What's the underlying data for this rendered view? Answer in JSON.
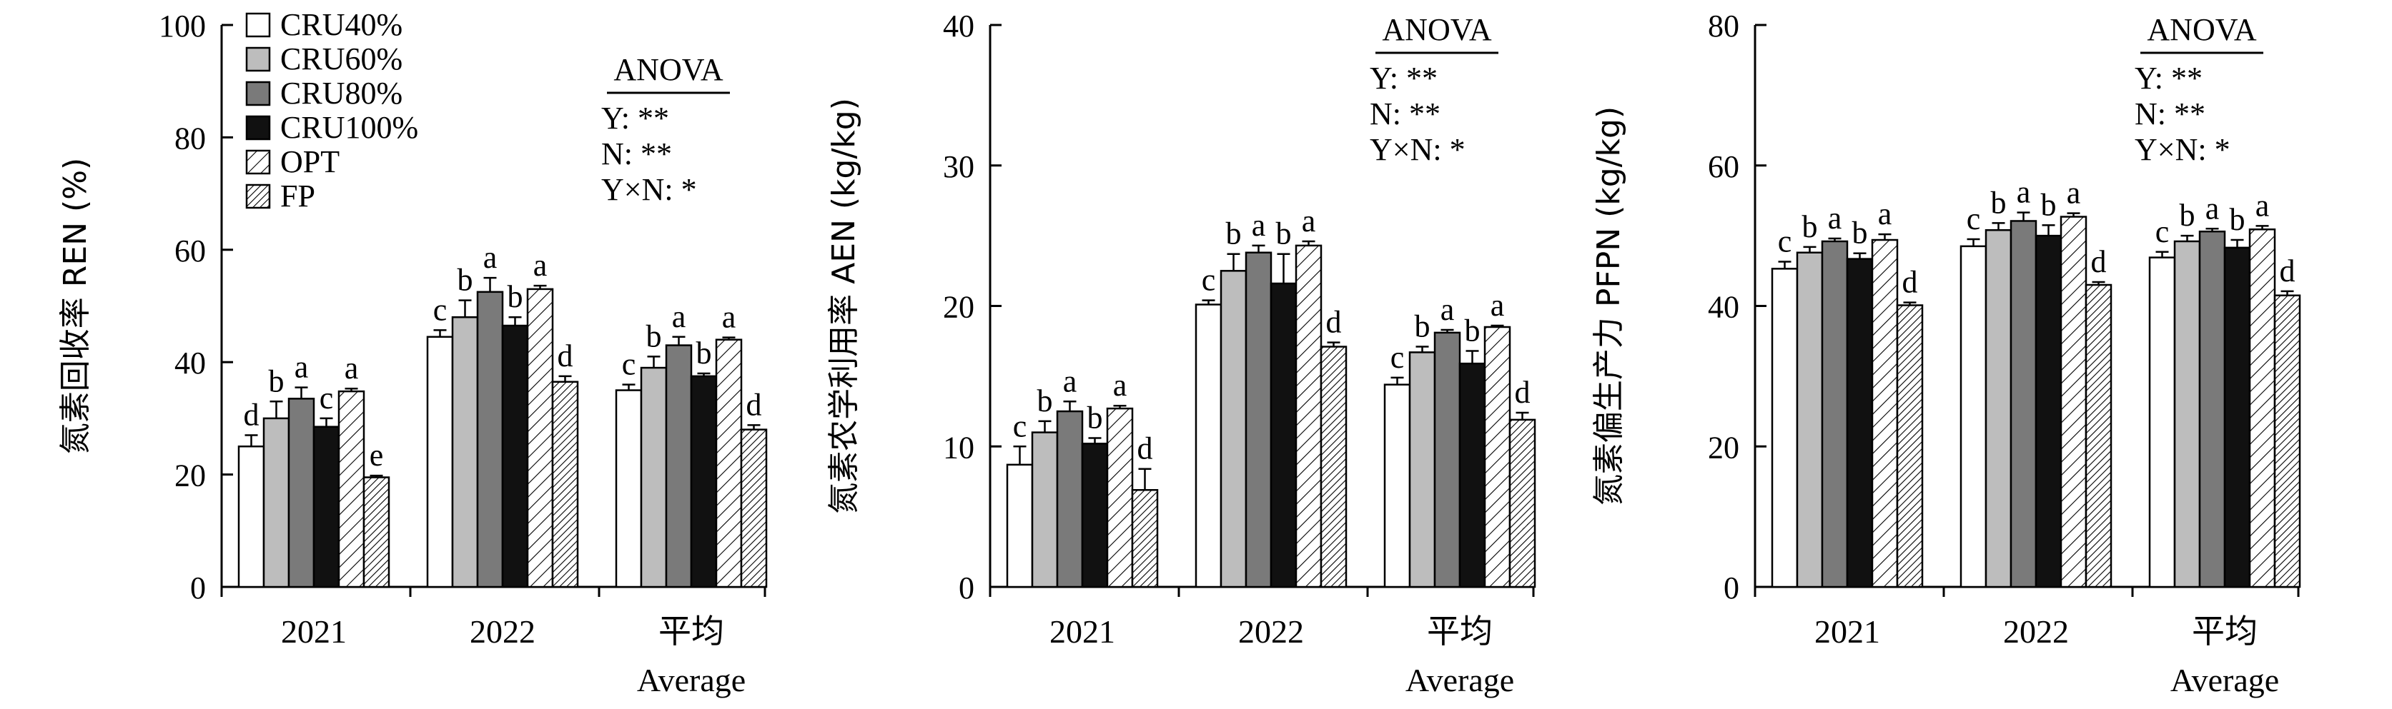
{
  "chart_data": [
    {
      "type": "bar",
      "ylabel": "氮素回收率 REN (%)",
      "ylim": [
        0,
        100
      ],
      "yticks": [
        0,
        20,
        40,
        60,
        80,
        100
      ],
      "categories": [
        "2021",
        "2022",
        "平均"
      ],
      "category_sublabels": [
        "",
        "",
        "Average"
      ],
      "anova": [
        "ANOVA",
        "Y: **",
        "N: **",
        "Y×N: *"
      ],
      "anova_position": "top-right",
      "legend_position": "top-left",
      "series": [
        {
          "name": "CRU40%",
          "fill": "white",
          "values": [
            25,
            44.5,
            35
          ],
          "errors": [
            2,
            1.2,
            1
          ],
          "letters": [
            "d",
            "c",
            "c"
          ]
        },
        {
          "name": "CRU60%",
          "fill": "light-gray",
          "values": [
            30,
            48,
            39
          ],
          "errors": [
            3,
            3,
            2
          ],
          "letters": [
            "b",
            "b",
            "b"
          ]
        },
        {
          "name": "CRU80%",
          "fill": "dark-gray",
          "values": [
            33.5,
            52.5,
            43
          ],
          "errors": [
            2,
            2.5,
            1.5
          ],
          "letters": [
            "a",
            "a",
            "a"
          ]
        },
        {
          "name": "CRU100%",
          "fill": "black",
          "values": [
            28.5,
            46.5,
            37.5
          ],
          "errors": [
            1.5,
            1.5,
            0.5
          ],
          "letters": [
            "c",
            "b",
            "b"
          ]
        },
        {
          "name": "OPT",
          "fill": "hatch-sparse",
          "values": [
            34.8,
            53,
            44
          ],
          "errors": [
            0.5,
            0.6,
            0.4
          ],
          "letters": [
            "a",
            "a",
            "a"
          ]
        },
        {
          "name": "FP",
          "fill": "hatch-dense",
          "values": [
            19.5,
            36.5,
            28
          ],
          "errors": [
            0.3,
            1,
            0.8
          ],
          "letters": [
            "e",
            "d",
            "d"
          ]
        }
      ]
    },
    {
      "type": "bar",
      "ylabel": "氮素农学利用率 AEN (kg/kg)",
      "ylim": [
        0,
        40
      ],
      "yticks": [
        0,
        10,
        20,
        30,
        40
      ],
      "categories": [
        "2021",
        "2022",
        "平均"
      ],
      "category_sublabels": [
        "",
        "",
        "Average"
      ],
      "anova": [
        "ANOVA",
        "Y: **",
        "N: **",
        "Y×N: *"
      ],
      "anova_position": "top-right",
      "series": [
        {
          "name": "CRU40%",
          "fill": "white",
          "values": [
            8.7,
            20.1,
            14.4
          ],
          "errors": [
            1.3,
            0.3,
            0.5
          ],
          "letters": [
            "c",
            "c",
            "c"
          ]
        },
        {
          "name": "CRU60%",
          "fill": "light-gray",
          "values": [
            11,
            22.5,
            16.7
          ],
          "errors": [
            0.8,
            1.2,
            0.4
          ],
          "letters": [
            "b",
            "b",
            "b"
          ]
        },
        {
          "name": "CRU80%",
          "fill": "dark-gray",
          "values": [
            12.5,
            23.8,
            18.1
          ],
          "errors": [
            0.7,
            0.5,
            0.2
          ],
          "letters": [
            "a",
            "a",
            "a"
          ]
        },
        {
          "name": "CRU100%",
          "fill": "black",
          "values": [
            10.2,
            21.6,
            15.9
          ],
          "errors": [
            0.4,
            2.1,
            0.9
          ],
          "letters": [
            "b",
            "b",
            "b"
          ]
        },
        {
          "name": "OPT",
          "fill": "hatch-sparse",
          "values": [
            12.7,
            24.3,
            18.5
          ],
          "errors": [
            0.2,
            0.3,
            0.1
          ],
          "letters": [
            "a",
            "a",
            "a"
          ]
        },
        {
          "name": "FP",
          "fill": "hatch-dense",
          "values": [
            6.9,
            17.1,
            11.9
          ],
          "errors": [
            1.5,
            0.3,
            0.5
          ],
          "letters": [
            "d",
            "d",
            "d"
          ]
        }
      ]
    },
    {
      "type": "bar",
      "ylabel": "氮素偏生产力 PFPN (kg/kg)",
      "ylim": [
        0,
        80
      ],
      "yticks": [
        0,
        20,
        40,
        60,
        80
      ],
      "categories": [
        "2021",
        "2022",
        "平均"
      ],
      "category_sublabels": [
        "",
        "",
        "Average"
      ],
      "anova": [
        "ANOVA",
        "Y: **",
        "N: **",
        "Y×N: *"
      ],
      "anova_position": "top-right",
      "series": [
        {
          "name": "CRU40%",
          "fill": "white",
          "values": [
            45.3,
            48.5,
            46.9
          ],
          "errors": [
            1,
            1,
            0.8
          ],
          "letters": [
            "c",
            "c",
            "c"
          ]
        },
        {
          "name": "CRU60%",
          "fill": "light-gray",
          "values": [
            47.6,
            50.8,
            49.2
          ],
          "errors": [
            0.8,
            1,
            0.8
          ],
          "letters": [
            "b",
            "b",
            "b"
          ]
        },
        {
          "name": "CRU80%",
          "fill": "dark-gray",
          "values": [
            49.2,
            52.1,
            50.6
          ],
          "errors": [
            0.4,
            1.2,
            0.4
          ],
          "letters": [
            "a",
            "a",
            "a"
          ]
        },
        {
          "name": "CRU100%",
          "fill": "black",
          "values": [
            46.7,
            50,
            48.3
          ],
          "errors": [
            0.8,
            1.5,
            1.1
          ],
          "letters": [
            "b",
            "b",
            "b"
          ]
        },
        {
          "name": "OPT",
          "fill": "hatch-sparse",
          "values": [
            49.4,
            52.7,
            50.9
          ],
          "errors": [
            0.8,
            0.5,
            0.5
          ],
          "letters": [
            "a",
            "a",
            "a"
          ]
        },
        {
          "name": "FP",
          "fill": "hatch-dense",
          "values": [
            40.1,
            43,
            41.5
          ],
          "errors": [
            0.4,
            0.4,
            0.6
          ],
          "letters": [
            "d",
            "d",
            "d"
          ]
        }
      ]
    }
  ]
}
